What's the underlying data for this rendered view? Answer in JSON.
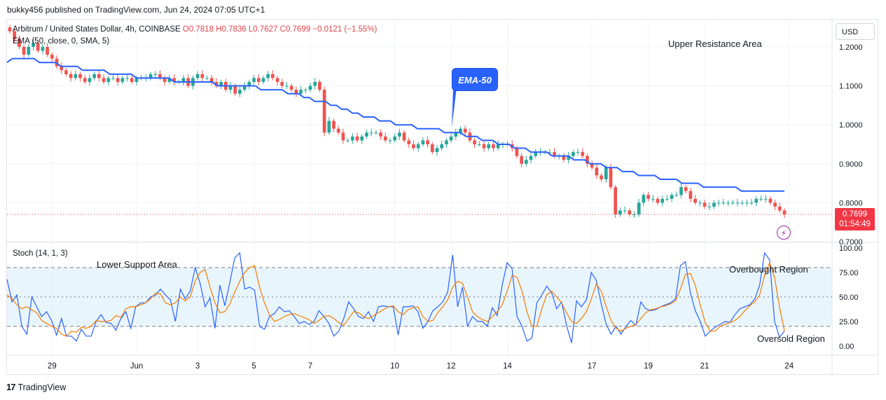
{
  "header": {
    "published": "bukky456 published on TradingView.com, Jun 24, 2024 07:05 UTC+1"
  },
  "legend": {
    "symbol": "Arbitrum / United States Dollar, 4h, COINBASE",
    "ohlc": "O0.7818  H0.7836  L0.7627  C0.7699  −0.0121 (−1.55%)",
    "ema": "EMA (50, close, 0, SMA, 5)",
    "stoch": "Stoch (14, 1, 3)"
  },
  "currency": "USD",
  "last_price": {
    "value": "0.7699",
    "countdown": "01:54:49",
    "color": "#f23645"
  },
  "annotations": {
    "ema_callout": "EMA-50",
    "upper": "Upper Resistance Area",
    "lower": "Lower Support Area",
    "overbought": "Overbought Region",
    "oversold": "Oversold Region"
  },
  "footer": {
    "brand": "TradingView"
  },
  "colors": {
    "up": "#26a69a",
    "down": "#ef5350",
    "ema": "#2962ff",
    "k": "#2962ff",
    "d": "#f57c00",
    "band": "#e3f2fd"
  },
  "chart_data": [
    {
      "type": "candlestick",
      "title": "Arbitrum / United States Dollar, 4h, COINBASE",
      "ylim": [
        0.7,
        1.27
      ],
      "yticks": [
        "1.2000",
        "1.1000",
        "1.0000",
        "0.9000",
        "0.8000",
        "0.7000"
      ],
      "ytick_values": [
        1.2,
        1.1,
        1.0,
        0.9,
        0.8,
        0.7
      ],
      "xticks": [
        "29",
        "Jun",
        "3",
        "5",
        "7",
        "10",
        "12",
        "14",
        "17",
        "19",
        "21",
        "24"
      ],
      "xtick_bars": [
        9,
        27,
        40,
        52,
        64,
        82,
        94,
        106,
        124,
        136,
        148,
        166
      ],
      "close": [
        1.24,
        1.22,
        1.2,
        1.18,
        1.2,
        1.21,
        1.19,
        1.2,
        1.18,
        1.17,
        1.15,
        1.14,
        1.13,
        1.12,
        1.13,
        1.12,
        1.11,
        1.12,
        1.13,
        1.12,
        1.11,
        1.12,
        1.12,
        1.11,
        1.12,
        1.12,
        1.11,
        1.12,
        1.12,
        1.12,
        1.13,
        1.13,
        1.12,
        1.11,
        1.12,
        1.11,
        1.11,
        1.12,
        1.1,
        1.12,
        1.13,
        1.12,
        1.12,
        1.11,
        1.1,
        1.11,
        1.09,
        1.1,
        1.08,
        1.09,
        1.1,
        1.11,
        1.12,
        1.11,
        1.12,
        1.13,
        1.12,
        1.11,
        1.1,
        1.1,
        1.09,
        1.08,
        1.09,
        1.09,
        1.1,
        1.11,
        1.09,
        0.98,
        1.01,
        0.99,
        0.98,
        0.96,
        0.96,
        0.97,
        0.96,
        0.97,
        0.98,
        0.98,
        0.98,
        0.97,
        0.96,
        0.96,
        0.97,
        0.98,
        0.96,
        0.95,
        0.94,
        0.95,
        0.96,
        0.95,
        0.93,
        0.94,
        0.95,
        0.96,
        0.97,
        0.98,
        0.99,
        0.98,
        0.96,
        0.95,
        0.95,
        0.94,
        0.95,
        0.94,
        0.95,
        0.95,
        0.95,
        0.94,
        0.92,
        0.9,
        0.91,
        0.92,
        0.93,
        0.93,
        0.93,
        0.93,
        0.92,
        0.92,
        0.91,
        0.92,
        0.93,
        0.93,
        0.92,
        0.9,
        0.89,
        0.87,
        0.86,
        0.89,
        0.84,
        0.77,
        0.78,
        0.78,
        0.77,
        0.77,
        0.8,
        0.82,
        0.81,
        0.81,
        0.8,
        0.81,
        0.81,
        0.82,
        0.82,
        0.84,
        0.83,
        0.81,
        0.8,
        0.8,
        0.79,
        0.79,
        0.8,
        0.8,
        0.8,
        0.8,
        0.8,
        0.8,
        0.8,
        0.8,
        0.8,
        0.81,
        0.81,
        0.81,
        0.8,
        0.79,
        0.78,
        0.77
      ],
      "ema": [
        1.16,
        1.17,
        1.17,
        1.17,
        1.17,
        1.17,
        1.16,
        1.16,
        1.16,
        1.16,
        1.15,
        1.15,
        1.15,
        1.15,
        1.14,
        1.14,
        1.14,
        1.14,
        1.14,
        1.13,
        1.13,
        1.13,
        1.13,
        1.13,
        1.12,
        1.12,
        1.12,
        1.12,
        1.12,
        1.12,
        1.12,
        1.11,
        1.11,
        1.11,
        1.11,
        1.11,
        1.11,
        1.11,
        1.11,
        1.1,
        1.1,
        1.1,
        1.1,
        1.1,
        1.1,
        1.1,
        1.1,
        1.09,
        1.09,
        1.09,
        1.09,
        1.09,
        1.08,
        1.08,
        1.08,
        1.07,
        1.07,
        1.06,
        1.06,
        1.06,
        1.05,
        1.05,
        1.04,
        1.04,
        1.03,
        1.03,
        1.02,
        1.02,
        1.02,
        1.01,
        1.01,
        1.01,
        1.0,
        1.0,
        1.0,
        1.0,
        0.99,
        0.99,
        0.99,
        0.99,
        0.99,
        0.98,
        0.98,
        0.98,
        0.98,
        0.97,
        0.97,
        0.97,
        0.96,
        0.96,
        0.96,
        0.95,
        0.95,
        0.95,
        0.94,
        0.94,
        0.94,
        0.93,
        0.93,
        0.93,
        0.93,
        0.92,
        0.92,
        0.92,
        0.92,
        0.91,
        0.91,
        0.91,
        0.9,
        0.9,
        0.9,
        0.89,
        0.89,
        0.89,
        0.88,
        0.88,
        0.88,
        0.87,
        0.87,
        0.87,
        0.87,
        0.86,
        0.86,
        0.86,
        0.86,
        0.85,
        0.85,
        0.85,
        0.85,
        0.84,
        0.84,
        0.84,
        0.84,
        0.84,
        0.84,
        0.84,
        0.83,
        0.83,
        0.83,
        0.83,
        0.83,
        0.83,
        0.83,
        0.83,
        0.83
      ]
    },
    {
      "type": "line",
      "title": "Stoch (14, 1, 3)",
      "ylim": [
        -8,
        105
      ],
      "yticks": [
        "100.00",
        "75.00",
        "50.00",
        "25.00",
        "0.00"
      ],
      "ytick_values": [
        100,
        75,
        50,
        25,
        0
      ],
      "bands": {
        "upper": 80,
        "middle": 50,
        "lower": 20
      },
      "series": [
        {
          "name": "%K",
          "values": [
            68,
            45,
            52,
            20,
            12,
            50,
            40,
            30,
            35,
            26,
            11,
            28,
            10,
            10,
            5,
            17,
            10,
            10,
            25,
            32,
            24,
            23,
            16,
            28,
            35,
            18,
            40,
            44,
            44,
            50,
            52,
            58,
            52,
            47,
            25,
            58,
            48,
            56,
            80,
            64,
            40,
            49,
            18,
            62,
            41,
            65,
            90,
            95,
            58,
            60,
            57,
            20,
            17,
            30,
            33,
            40,
            35,
            36,
            30,
            23,
            25,
            22,
            25,
            36,
            30,
            23,
            10,
            15,
            28,
            45,
            38,
            30,
            28,
            35,
            25,
            40,
            41,
            40,
            40,
            11,
            40,
            40,
            41,
            35,
            18,
            25,
            36,
            40,
            45,
            55,
            93,
            40,
            60,
            20,
            30,
            25,
            25,
            20,
            39,
            31,
            62,
            85,
            79,
            30,
            20,
            5,
            8,
            44,
            52,
            61,
            54,
            38,
            45,
            21,
            3,
            46,
            40,
            47,
            75,
            67,
            43,
            22,
            12,
            20,
            12,
            20,
            26,
            21,
            45,
            38,
            36,
            37,
            40,
            42,
            44,
            48,
            82,
            86,
            54,
            36,
            25,
            10,
            15,
            19,
            22,
            25,
            24,
            32,
            38,
            40,
            42,
            48,
            62,
            95,
            88,
            25,
            9,
            15
          ]
        },
        {
          "name": "%D",
          "values": [
            52,
            48,
            42,
            38,
            40,
            37,
            34,
            26,
            23,
            20,
            18,
            12,
            10,
            15,
            14,
            19,
            18,
            20,
            26,
            25,
            25,
            26,
            31,
            29,
            38,
            40,
            40,
            42,
            44,
            48,
            54,
            53,
            44,
            42,
            44,
            50,
            46,
            50,
            66,
            75,
            78,
            60,
            44,
            34,
            35,
            43,
            55,
            66,
            75,
            80,
            82,
            60,
            44,
            32,
            25,
            27,
            30,
            32,
            33,
            31,
            29,
            27,
            23,
            26,
            30,
            31,
            28,
            24,
            21,
            28,
            35,
            34,
            30,
            28,
            31,
            34,
            37,
            40,
            41,
            35,
            32,
            37,
            39,
            40,
            30,
            25,
            26,
            34,
            40,
            47,
            60,
            66,
            64,
            50,
            35,
            30,
            27,
            25,
            30,
            35,
            42,
            56,
            72,
            70,
            56,
            35,
            20,
            20,
            38,
            52,
            56,
            50,
            44,
            34,
            25,
            23,
            28,
            35,
            48,
            63,
            56,
            40,
            26,
            18,
            15,
            18,
            20,
            22,
            28,
            34,
            37,
            38,
            40,
            41,
            43,
            46,
            58,
            73,
            74,
            62,
            42,
            24,
            15,
            15,
            20,
            22,
            24,
            26,
            30,
            36,
            41,
            45,
            52,
            72,
            85,
            70,
            40,
            15
          ]
        }
      ]
    }
  ]
}
